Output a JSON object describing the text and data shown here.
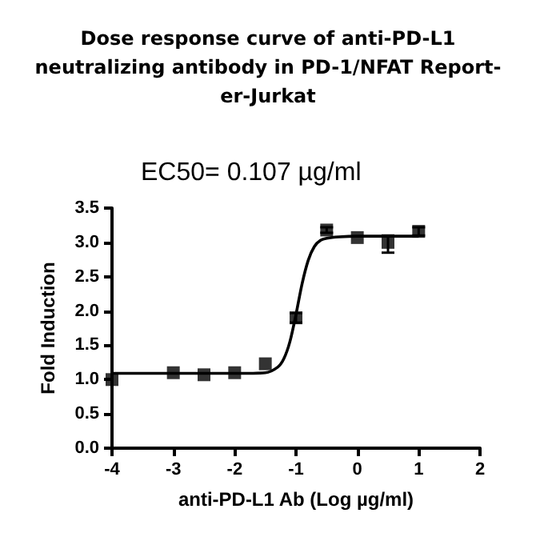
{
  "chart_data": {
    "type": "scatter",
    "title": "Dose response curve of anti-PD-L1\nneutralizing antibody in PD-1/NFAT Report-\ner-Jurkat",
    "annotations": [
      "EC50= 0.107 µg/ml"
    ],
    "xlabel": "anti-PD-L1 Ab (Log µg/ml)",
    "ylabel": "Fold Induction",
    "xlim": [
      -4,
      2
    ],
    "ylim": [
      0,
      3.5
    ],
    "xticks": [
      -4,
      -3,
      -2,
      -1,
      0,
      1,
      2
    ],
    "yticks": [
      {
        "value": 0,
        "label": "0.0"
      },
      0.5,
      {
        "value": 1,
        "label": "1.0"
      },
      1.5,
      {
        "value": 2,
        "label": "2.0"
      },
      2.5,
      {
        "value": 3,
        "label": "3.0"
      },
      3.5
    ],
    "series": [
      {
        "color": "#000000",
        "marker": "square",
        "x": [
          -4,
          -3,
          -2.5,
          -2,
          -1.5,
          -1,
          -0.5,
          0,
          0.5,
          1
        ],
        "values": [
          1.0,
          1.1,
          1.07,
          1.1,
          1.23,
          1.9,
          3.18,
          3.07,
          3.0,
          3.16
        ],
        "errors": [
          null,
          null,
          null,
          null,
          null,
          0.07,
          0.04,
          null,
          [
            2.85,
            3.1
          ],
          [
            3.1,
            3.22
          ]
        ]
      },
      {
        "type": "line",
        "color": "#000000",
        "marker": "none",
        "x": [
          -4,
          -2,
          -1.5,
          -1.3,
          -1.2,
          -1.1,
          -1.0,
          -0.9,
          -0.8,
          -0.7,
          -0.6,
          -0.5,
          -0.3,
          0,
          1
        ],
        "values": [
          1.09,
          1.09,
          1.1,
          1.18,
          1.3,
          1.55,
          1.95,
          2.4,
          2.74,
          2.94,
          3.03,
          3.06,
          3.08,
          3.09,
          3.09
        ],
        "line_style": "solid"
      }
    ]
  }
}
